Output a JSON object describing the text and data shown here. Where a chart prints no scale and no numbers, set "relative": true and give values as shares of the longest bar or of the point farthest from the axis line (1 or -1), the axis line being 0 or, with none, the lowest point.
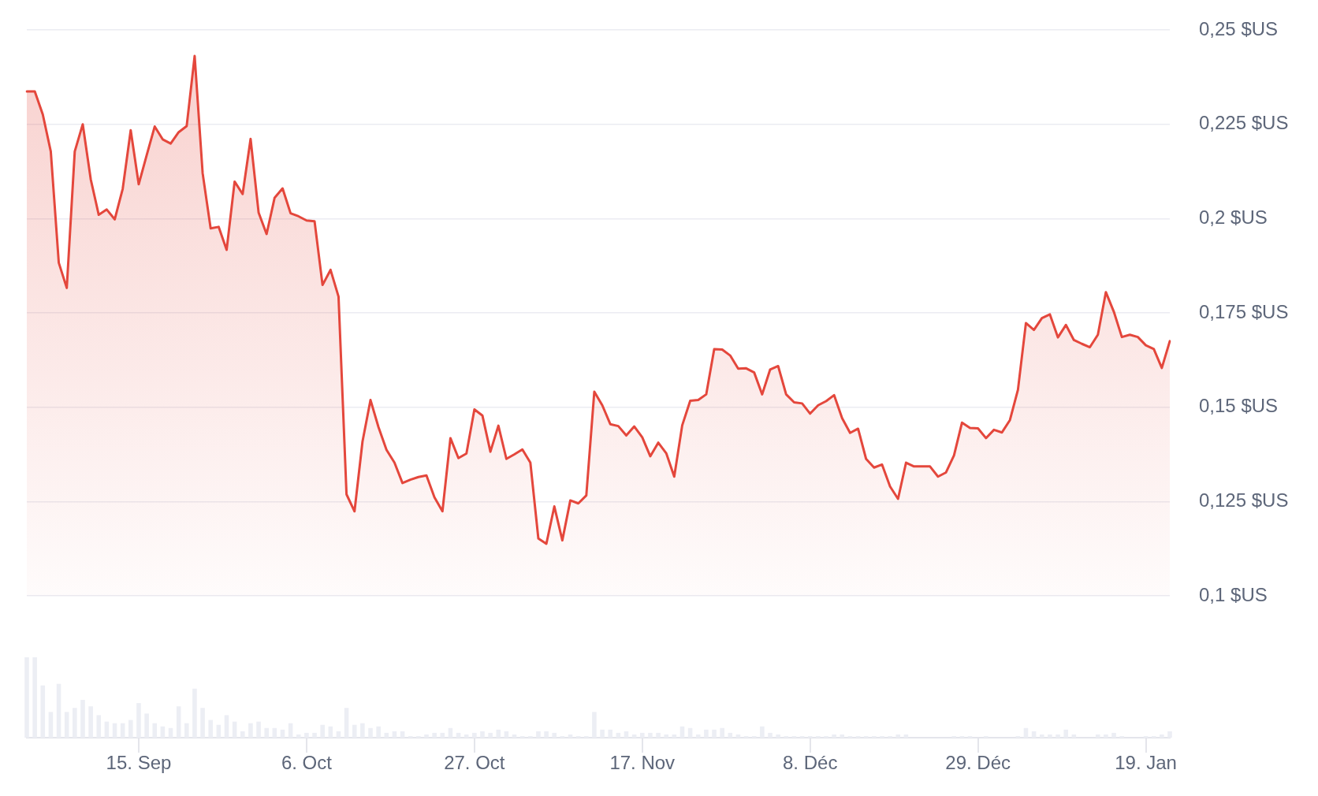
{
  "chart_data": [
    {
      "type": "area",
      "categories": [
        null,
        null,
        null,
        null,
        null,
        null,
        null,
        null,
        null,
        null,
        null,
        null,
        null,
        null,
        null,
        null,
        null,
        null,
        null,
        null,
        null,
        null,
        null,
        null,
        null,
        null,
        null,
        null,
        null,
        null,
        null,
        null,
        null,
        null,
        null,
        null,
        null,
        null,
        null,
        null,
        null,
        null,
        null,
        null,
        null,
        null,
        null,
        null,
        null,
        null,
        null,
        null,
        null,
        null,
        null,
        null,
        null,
        null,
        null,
        null,
        null,
        null,
        null,
        null,
        null,
        null,
        null,
        null,
        null,
        null,
        null,
        null,
        null,
        null,
        null,
        null,
        null,
        null,
        null,
        null,
        null,
        null,
        null,
        null,
        null,
        null,
        null,
        null,
        null,
        null,
        null,
        null,
        null,
        null,
        null,
        null,
        null,
        null,
        null,
        null,
        null,
        null,
        null,
        null,
        null,
        null,
        null,
        null,
        null,
        null,
        null,
        null,
        null,
        null,
        null,
        null,
        null,
        null,
        null,
        null,
        null,
        null,
        null,
        null,
        null,
        null,
        null,
        null,
        null,
        null,
        null,
        null,
        null,
        null,
        null,
        null,
        null,
        null,
        null,
        null,
        null,
        null,
        null,
        null
      ],
      "ylim": [
        0.1,
        0.25
      ],
      "yticks": [
        {
          "value": 0.1,
          "label": "0,1 $US"
        },
        {
          "value": 0.125,
          "label": "0,125 $US"
        },
        {
          "value": 0.15,
          "label": "0,15 $US"
        },
        {
          "value": 0.175,
          "label": "0,175 $US"
        },
        {
          "value": 0.2,
          "label": "0,2 $US"
        },
        {
          "value": 0.225,
          "label": "0,225 $US"
        },
        {
          "value": 0.25,
          "label": "0,25 $US"
        }
      ],
      "grid": "y",
      "tick_labels": "y",
      "series": [
        {
          "color": "#e4473c",
          "values": [
            0.2337,
            0.2337,
            0.2276,
            0.2178,
            0.1883,
            0.1816,
            0.2178,
            0.225,
            0.2104,
            0.201,
            0.2024,
            0.1998,
            0.2079,
            0.2234,
            0.2091,
            0.2168,
            0.2244,
            0.221,
            0.2199,
            0.2229,
            0.2245,
            0.2431,
            0.212,
            0.1974,
            0.1978,
            0.1917,
            0.2098,
            0.2065,
            0.2211,
            0.2016,
            0.1959,
            0.2055,
            0.208,
            0.2014,
            0.2006,
            0.1995,
            0.1993,
            0.1824,
            0.1864,
            0.1793,
            0.1269,
            0.1224,
            0.1409,
            0.1519,
            0.1447,
            0.1387,
            0.1353,
            0.1299,
            0.1308,
            0.1315,
            0.1319,
            0.1261,
            0.1224,
            0.1418,
            0.1365,
            0.1377,
            0.1494,
            0.1478,
            0.1382,
            0.1451,
            0.1363,
            0.1375,
            0.1388,
            0.1353,
            0.1152,
            0.1138,
            0.1237,
            0.1147,
            0.1253,
            0.1245,
            0.1266,
            0.1541,
            0.1505,
            0.1455,
            0.145,
            0.1425,
            0.1449,
            0.142,
            0.137,
            0.1406,
            0.1378,
            0.1316,
            0.1452,
            0.1517,
            0.1519,
            0.1534,
            0.1654,
            0.1653,
            0.1637,
            0.1602,
            0.1603,
            0.1592,
            0.1534,
            0.16,
            0.1609,
            0.1534,
            0.1513,
            0.151,
            0.1483,
            0.1505,
            0.1516,
            0.1532,
            0.1471,
            0.1432,
            0.1443,
            0.1363,
            0.134,
            0.1348,
            0.129,
            0.1257,
            0.1353,
            0.1343,
            0.1343,
            0.1343,
            0.1316,
            0.1327,
            0.1372,
            0.1459,
            0.1445,
            0.1444,
            0.1418,
            0.144,
            0.1433,
            0.1466,
            0.1546,
            0.1723,
            0.1705,
            0.1736,
            0.1746,
            0.1685,
            0.1718,
            0.1678,
            0.1668,
            0.1659,
            0.1692,
            0.1805,
            0.1753,
            0.1686,
            0.1692,
            0.1686,
            0.1664,
            0.1654,
            0.1604,
            0.1675
          ]
        }
      ]
    },
    {
      "type": "bar",
      "relative": true,
      "categories": [
        null,
        null,
        null,
        null,
        null,
        null,
        null,
        null,
        null,
        null,
        null,
        null,
        null,
        null,
        "15. Sep",
        null,
        null,
        null,
        null,
        null,
        null,
        null,
        null,
        null,
        null,
        null,
        null,
        null,
        null,
        null,
        null,
        null,
        null,
        null,
        null,
        "6. Oct",
        null,
        null,
        null,
        null,
        null,
        null,
        null,
        null,
        null,
        null,
        null,
        null,
        null,
        null,
        null,
        null,
        null,
        null,
        null,
        null,
        "27. Oct",
        null,
        null,
        null,
        null,
        null,
        null,
        null,
        null,
        null,
        null,
        null,
        null,
        null,
        null,
        null,
        null,
        null,
        null,
        null,
        null,
        "17. Nov",
        null,
        null,
        null,
        null,
        null,
        null,
        null,
        null,
        null,
        null,
        null,
        null,
        null,
        null,
        null,
        null,
        null,
        null,
        null,
        null,
        "8. Déc",
        null,
        null,
        null,
        null,
        null,
        null,
        null,
        null,
        null,
        null,
        null,
        null,
        null,
        null,
        null,
        null,
        null,
        null,
        null,
        null,
        "29. Déc",
        null,
        null,
        null,
        null,
        null,
        null,
        null,
        null,
        null,
        null,
        null,
        null,
        null,
        null,
        null,
        null,
        null,
        null,
        null,
        null,
        "19. Jan",
        null,
        null,
        null
      ],
      "tick_labels": "x",
      "color": "#eceef4",
      "values": [
        1,
        1,
        0.65,
        0.32,
        0.67,
        0.32,
        0.37,
        0.47,
        0.39,
        0.28,
        0.2,
        0.18,
        0.18,
        0.22,
        0.43,
        0.3,
        0.18,
        0.14,
        0.12,
        0.39,
        0.18,
        0.61,
        0.37,
        0.22,
        0.16,
        0.28,
        0.2,
        0.08,
        0.18,
        0.2,
        0.12,
        0.12,
        0.1,
        0.18,
        0.04,
        0.06,
        0.06,
        0.16,
        0.14,
        0.08,
        0.37,
        0.16,
        0.18,
        0.12,
        0.14,
        0.06,
        0.08,
        0.08,
        0.02,
        0.02,
        0.04,
        0.06,
        0.06,
        0.12,
        0.06,
        0.04,
        0.06,
        0.08,
        0.06,
        0.1,
        0.08,
        0.04,
        0.02,
        0.02,
        0.08,
        0.08,
        0.06,
        0.02,
        0.04,
        0.02,
        0.02,
        0.32,
        0.1,
        0.1,
        0.06,
        0.08,
        0.04,
        0.06,
        0.06,
        0.06,
        0.04,
        0.04,
        0.14,
        0.12,
        0.04,
        0.1,
        0.1,
        0.12,
        0.06,
        0.04,
        0.02,
        0.02,
        0.14,
        0.06,
        0.04,
        0.02,
        0.02,
        0.02,
        0.02,
        0.02,
        0.02,
        0.04,
        0.04,
        0.02,
        0.02,
        0.02,
        0.02,
        0.02,
        0.02,
        0.04,
        0.04,
        null,
        null,
        null,
        null,
        null,
        0.02,
        0.02,
        0.02,
        null,
        0.02,
        null,
        null,
        null,
        0.02,
        0.12,
        0.08,
        0.04,
        0.04,
        0.04,
        0.1,
        0.04,
        null,
        null,
        0.04,
        0.04,
        0.06,
        0.02,
        null,
        null,
        0.02,
        0.02,
        0.04,
        0.08
      ]
    }
  ]
}
